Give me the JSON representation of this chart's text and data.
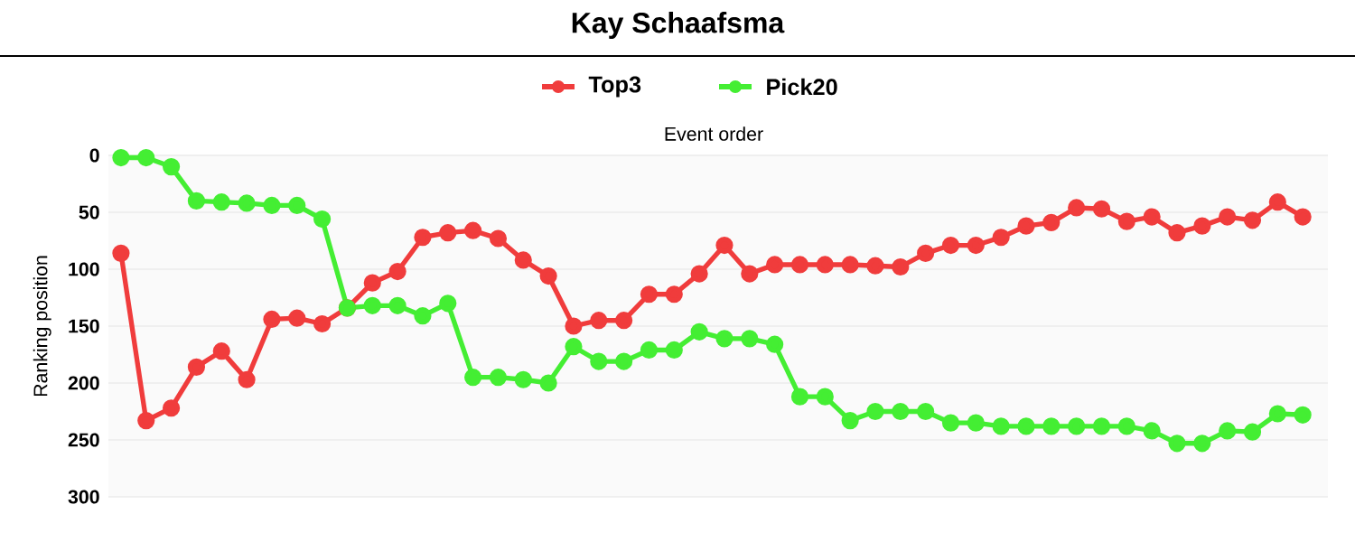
{
  "chart_data": {
    "type": "line",
    "title": "Kay Schaafsma",
    "xlabel": "Event order",
    "ylabel": "Ranking position",
    "categories": [
      null,
      null,
      null,
      null,
      null,
      null,
      null,
      null,
      null,
      null,
      null,
      null,
      null,
      null,
      null,
      null,
      null,
      null,
      null,
      null,
      null,
      null,
      null,
      null,
      null,
      null,
      null,
      null,
      null,
      null,
      null,
      null,
      null,
      null,
      null,
      null,
      null,
      null,
      null,
      null,
      null,
      null,
      null,
      null,
      null,
      null,
      null,
      null
    ],
    "series": [
      {
        "name": "Top3",
        "color": "#f03c3c",
        "values": [
          86,
          233,
          222,
          186,
          172,
          197,
          144,
          143,
          148,
          134,
          112,
          102,
          72,
          68,
          66,
          73,
          92,
          106,
          150,
          145,
          145,
          122,
          122,
          104,
          79,
          104,
          96,
          96,
          96,
          96,
          97,
          98,
          86,
          79,
          79,
          72,
          62,
          59,
          46,
          47,
          58,
          54,
          68,
          62,
          54,
          57,
          41,
          54
        ]
      },
      {
        "name": "Pick20",
        "color": "#44ee33",
        "values": [
          2,
          2,
          10,
          40,
          41,
          42,
          44,
          44,
          56,
          134,
          132,
          132,
          141,
          130,
          195,
          195,
          197,
          200,
          168,
          181,
          181,
          171,
          171,
          155,
          161,
          161,
          166,
          212,
          212,
          233,
          225,
          225,
          225,
          235,
          235,
          238,
          238,
          238,
          238,
          238,
          238,
          242,
          253,
          253,
          242,
          243,
          227,
          228
        ]
      }
    ],
    "ylim": [
      300,
      0
    ],
    "yticks": [
      0,
      50,
      100,
      150,
      200,
      250,
      300
    ],
    "grid": "y",
    "legend": "top",
    "marker": "circle",
    "line_style": "solid"
  }
}
